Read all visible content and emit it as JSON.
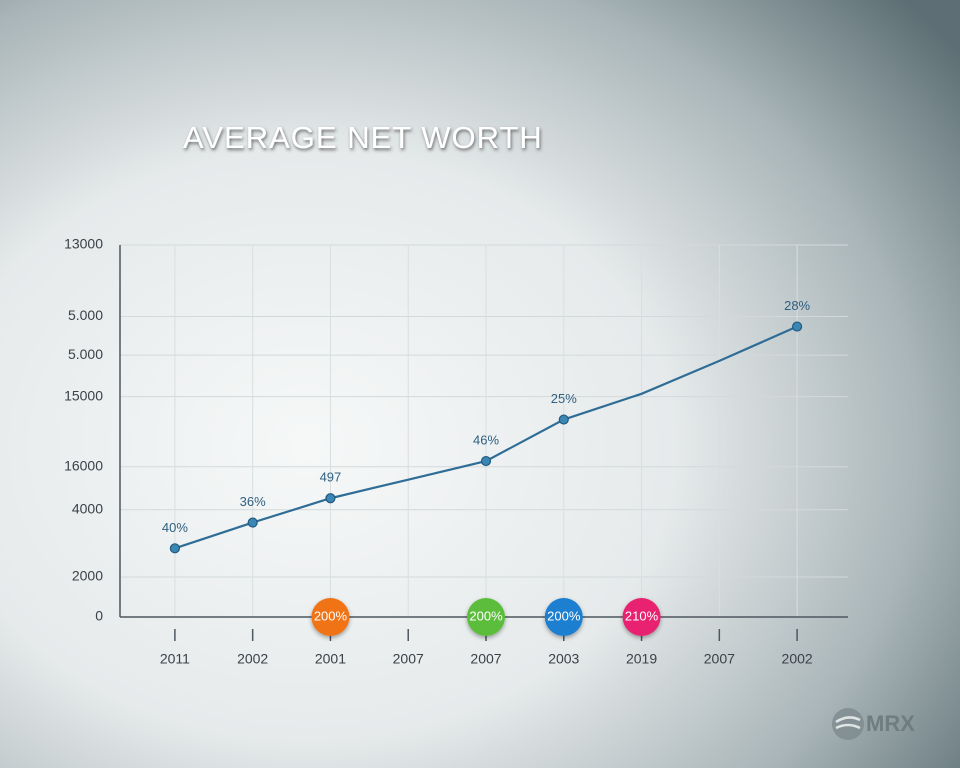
{
  "chart_data": {
    "type": "line",
    "title": "AVERAGE NET WORTH",
    "categories": [
      "2011",
      "2002",
      "2001",
      "2007",
      "2007",
      "2003",
      "2019",
      "2007",
      "2002"
    ],
    "series": [
      {
        "color": "#2f6d96",
        "values": [
          2400,
          3300,
          4150,
          4800,
          5450,
          6900,
          7800,
          8950,
          10150
        ],
        "value_labels": [
          "40%",
          "36%",
          "497",
          null,
          "46%",
          "25%",
          null,
          null,
          "28%"
        ]
      }
    ],
    "ylim": [
      0,
      13000
    ],
    "yticks": [
      {
        "value": 13000,
        "label": "13000"
      },
      {
        "value": 10500,
        "label": "5.000"
      },
      {
        "value": 9150,
        "label": "5.000"
      },
      {
        "value": 7700,
        "label": "15000"
      },
      {
        "value": 5250,
        "label": "16000"
      },
      {
        "value": 3750,
        "label": "4000"
      },
      {
        "value": 1400,
        "label": "2000"
      },
      0
    ],
    "grid": true,
    "badges": [
      null,
      null,
      {
        "label": "200%",
        "color": "#f07318"
      },
      null,
      {
        "label": "200%",
        "color": "#5bbd3c"
      },
      {
        "label": "200%",
        "color": "#1a7fcf"
      },
      {
        "label": "210%",
        "color": "#e8236f"
      },
      null,
      null
    ],
    "watermark": "MRX"
  }
}
